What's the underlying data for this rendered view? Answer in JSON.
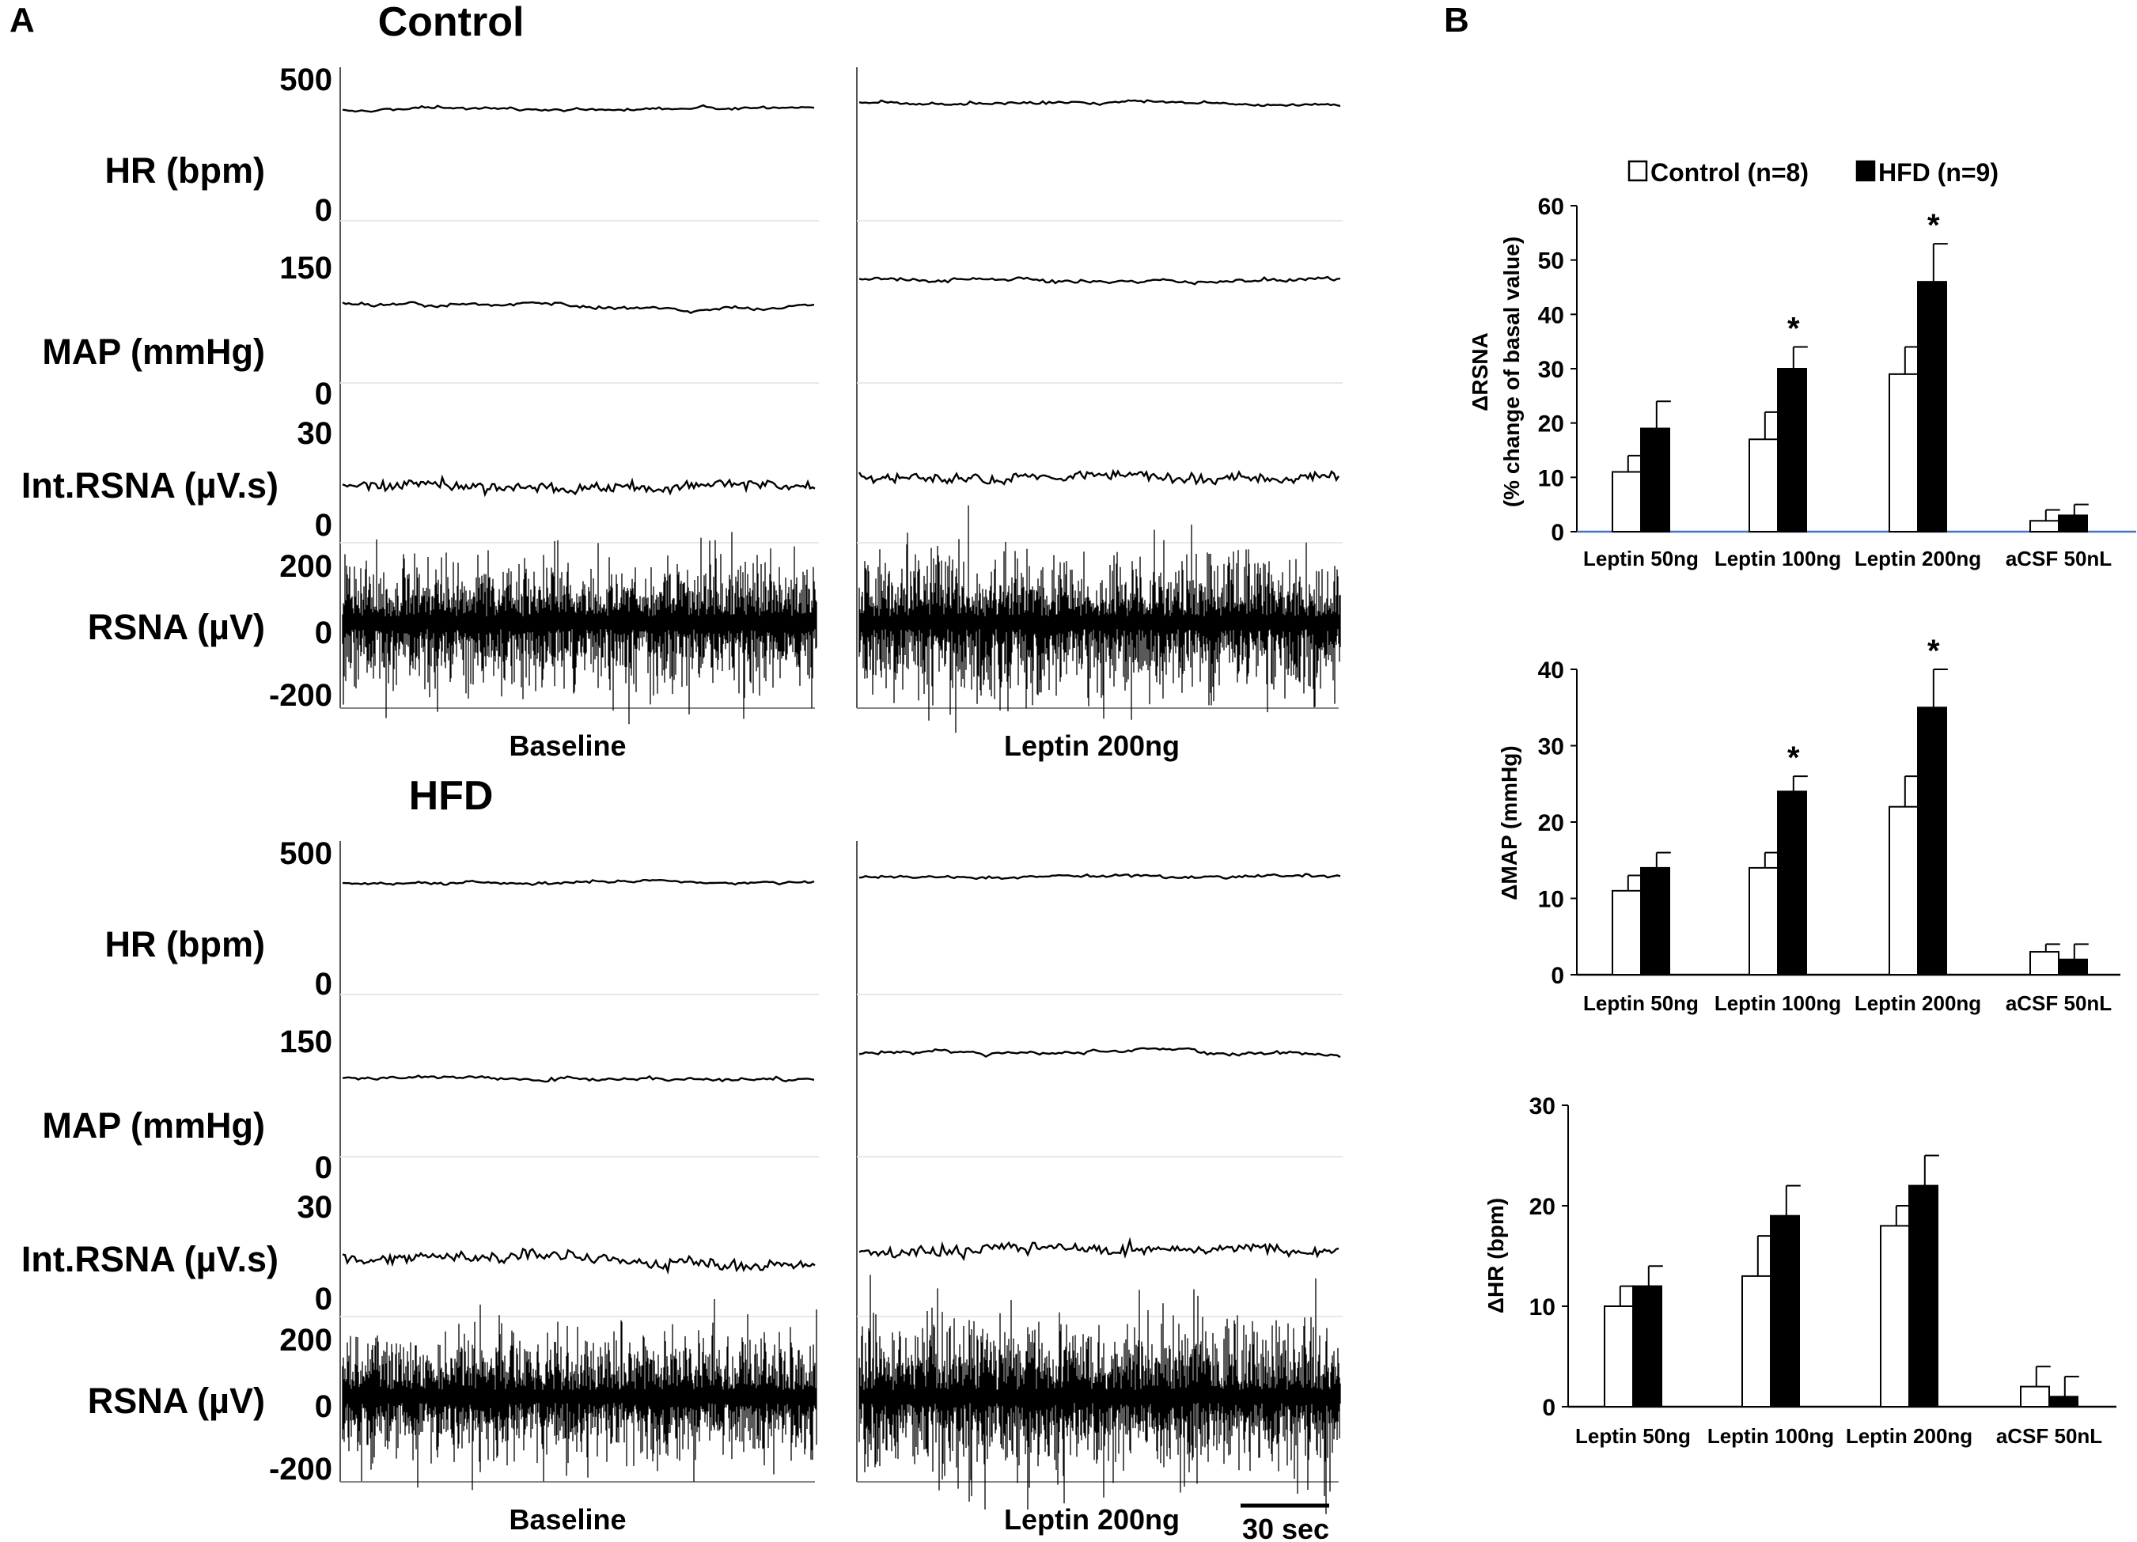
{
  "panel_a": {
    "letter": "A",
    "scale_bar_label": "30 sec",
    "groups": [
      {
        "title": "Control",
        "conditions": [
          "Baseline",
          "Leptin 200ng"
        ],
        "channels": [
          {
            "label": "HR (bpm)",
            "ticks": [
              "500",
              "0"
            ],
            "type": "smooth"
          },
          {
            "label": "MAP (mmHg)",
            "ticks": [
              "150",
              "0"
            ],
            "type": "smooth"
          },
          {
            "label": "Int.RSNA (µV.s)",
            "ticks": [
              "30",
              "0"
            ],
            "type": "integrated"
          },
          {
            "label": "RSNA (µV)",
            "ticks": [
              "200",
              "0",
              "-200"
            ],
            "type": "raw"
          }
        ]
      },
      {
        "title": "HFD",
        "conditions": [
          "Baseline",
          "Leptin 200ng"
        ],
        "channels": [
          {
            "label": "HR (bpm)",
            "ticks": [
              "500",
              "0"
            ],
            "type": "smooth"
          },
          {
            "label": "MAP (mmHg)",
            "ticks": [
              "150",
              "0"
            ],
            "type": "smooth"
          },
          {
            "label": "Int.RSNA (µV.s)",
            "ticks": [
              "30",
              "0"
            ],
            "type": "integrated"
          },
          {
            "label": "RSNA (µV)",
            "ticks": [
              "200",
              "0",
              "-200"
            ],
            "type": "raw"
          }
        ]
      }
    ]
  },
  "panel_b": {
    "letter": "B",
    "legend": [
      {
        "label": "Control (n=8)",
        "color": "#ffffff"
      },
      {
        "label": "HFD (n=9)",
        "color": "#000000"
      }
    ]
  },
  "chart_data": [
    {
      "type": "bar",
      "ylabel_line1": "ΔRSNA",
      "ylabel_line2": "(% change of basal value)",
      "ylim": [
        0,
        60
      ],
      "yticks": [
        0,
        10,
        20,
        30,
        40,
        50,
        60
      ],
      "categories": [
        "Leptin 50ng",
        "Leptin 100ng",
        "Leptin 200ng",
        "aCSF 50nL"
      ],
      "series": [
        {
          "name": "Control (n=8)",
          "values": [
            11,
            17,
            29,
            2
          ],
          "errors": [
            3,
            5,
            5,
            2
          ]
        },
        {
          "name": "HFD (n=9)",
          "values": [
            19,
            30,
            46,
            3
          ],
          "errors": [
            5,
            4,
            7,
            2
          ]
        }
      ],
      "significance": [
        false,
        true,
        true,
        false
      ]
    },
    {
      "type": "bar",
      "ylabel_line1": "ΔMAP (mmHg)",
      "ylabel_line2": "",
      "ylim": [
        0,
        40
      ],
      "yticks": [
        0,
        10,
        20,
        30,
        40
      ],
      "categories": [
        "Leptin 50ng",
        "Leptin 100ng",
        "Leptin 200ng",
        "aCSF 50nL"
      ],
      "series": [
        {
          "name": "Control (n=8)",
          "values": [
            11,
            14,
            22,
            3
          ],
          "errors": [
            2,
            2,
            4,
            1
          ]
        },
        {
          "name": "HFD (n=9)",
          "values": [
            14,
            24,
            35,
            2
          ],
          "errors": [
            2,
            2,
            5,
            2
          ]
        }
      ],
      "significance": [
        false,
        true,
        true,
        false
      ]
    },
    {
      "type": "bar",
      "ylabel_line1": "ΔHR (bpm)",
      "ylabel_line2": "",
      "ylim": [
        0,
        30
      ],
      "yticks": [
        0,
        10,
        20,
        30
      ],
      "categories": [
        "Leptin 50ng",
        "Leptin 100ng",
        "Leptin 200ng",
        "aCSF 50nL"
      ],
      "series": [
        {
          "name": "Control (n=8)",
          "values": [
            10,
            13,
            18,
            2
          ],
          "errors": [
            2,
            4,
            2,
            2
          ]
        },
        {
          "name": "HFD (n=9)",
          "values": [
            12,
            19,
            22,
            1
          ],
          "errors": [
            2,
            3,
            3,
            2
          ]
        }
      ],
      "significance": [
        false,
        false,
        false,
        false
      ]
    }
  ]
}
